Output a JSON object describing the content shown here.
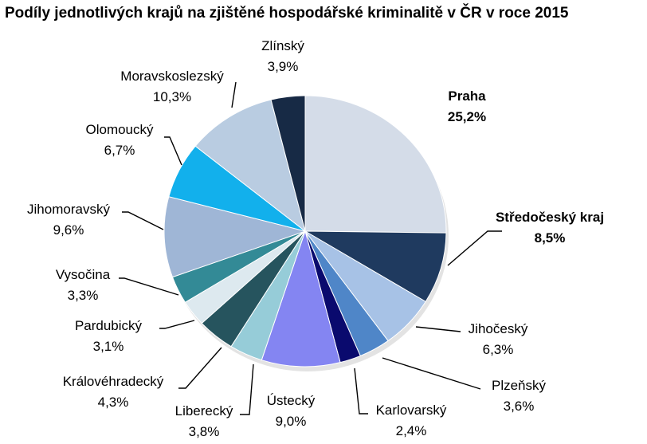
{
  "chart_data": {
    "type": "pie",
    "title": "Podíly jednotlivých krajů na zjištěné hospodářské kriminalitě v ČR v roce 2015",
    "slices": [
      {
        "label": "Praha",
        "value_label": "25,2%",
        "value": 25.2,
        "color": "#d4dce8",
        "bold": true
      },
      {
        "label": "Středočeský kraj",
        "value_label": "8,5%",
        "value": 8.5,
        "color": "#1f3a5f",
        "bold": true
      },
      {
        "label": "Jihočeský",
        "value_label": "6,3%",
        "value": 6.3,
        "color": "#a7c2e6",
        "bold": false
      },
      {
        "label": "Plzeňský",
        "value_label": "3,6%",
        "value": 3.6,
        "color": "#4f86c8",
        "bold": false
      },
      {
        "label": "Karlovarský",
        "value_label": "2,4%",
        "value": 2.4,
        "color": "#0a0a6e",
        "bold": false
      },
      {
        "label": "Ústecký",
        "value_label": "9,0%",
        "value": 9.0,
        "color": "#8485f2",
        "bold": false
      },
      {
        "label": "Liberecký",
        "value_label": "3,8%",
        "value": 3.8,
        "color": "#96ccd8",
        "bold": false
      },
      {
        "label": "Královéhradecký",
        "value_label": "4,3%",
        "value": 4.3,
        "color": "#26545e",
        "bold": false
      },
      {
        "label": "Pardubický",
        "value_label": "3,1%",
        "value": 3.1,
        "color": "#dde9ef",
        "bold": false
      },
      {
        "label": "Vysočina",
        "value_label": "3,3%",
        "value": 3.3,
        "color": "#338a96",
        "bold": false
      },
      {
        "label": "Jihomoravský",
        "value_label": "9,6%",
        "value": 9.6,
        "color": "#9fb6d6",
        "bold": false
      },
      {
        "label": "Olomoucký",
        "value_label": "6,7%",
        "value": 6.7,
        "color": "#12b0ec",
        "bold": false
      },
      {
        "label": "Moravskoslezský",
        "value_label": "10,3%",
        "value": 10.3,
        "color": "#b9cce1",
        "bold": false
      },
      {
        "label": "Zlínský",
        "value_label": "3,9%",
        "value": 3.9,
        "color": "#172a45",
        "bold": false
      }
    ]
  }
}
